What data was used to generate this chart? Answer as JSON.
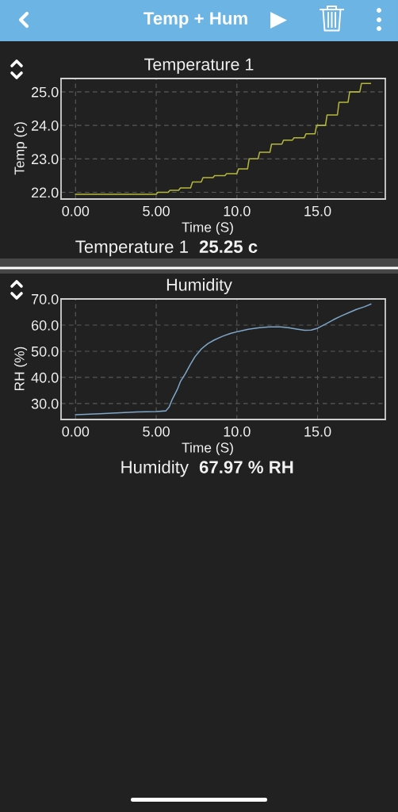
{
  "chart_data": [
    {
      "type": "other",
      "title": "Temp + Hum"
    },
    {
      "type": "line",
      "title": "Temperature 1",
      "xlabel": "Time (S)",
      "ylabel": "Temp (c)",
      "color": "#b5b83a",
      "x": [
        0,
        5.0,
        5.1,
        5.74,
        5.85,
        6.39,
        6.5,
        7.13,
        7.25,
        7.79,
        7.9,
        8.52,
        8.62,
        9.26,
        9.36,
        10.0,
        10.1,
        10.66,
        10.76,
        11.31,
        11.41,
        12.05,
        12.15,
        12.79,
        12.89,
        13.44,
        13.54,
        14.18,
        14.28,
        14.84,
        14.94,
        15.49,
        15.59,
        16.23,
        16.33,
        16.89,
        16.99,
        17.62,
        17.72,
        18.28
      ],
      "values": [
        21.94,
        21.94,
        22.0,
        22.0,
        22.06,
        22.06,
        22.13,
        22.13,
        22.31,
        22.31,
        22.44,
        22.44,
        22.5,
        22.5,
        22.56,
        22.56,
        22.7,
        22.7,
        23.0,
        23.0,
        23.2,
        23.2,
        23.44,
        23.44,
        23.56,
        23.56,
        23.63,
        23.63,
        23.75,
        23.75,
        24.0,
        24.0,
        24.31,
        24.31,
        24.69,
        24.69,
        25.0,
        25.0,
        25.25,
        25.25
      ],
      "xlim": [
        -0.9,
        19.2
      ],
      "ylim": [
        21.8,
        25.4
      ],
      "xticks": [
        {
          "value": 0,
          "label": "0.00"
        },
        {
          "value": 5,
          "label": "5.00"
        },
        {
          "value": 10,
          "label": "10.0"
        },
        {
          "value": 15,
          "label": "15.0"
        }
      ],
      "yticks": [
        {
          "value": 22,
          "label": "22.0"
        },
        {
          "value": 23,
          "label": "23.0"
        },
        {
          "value": 24,
          "label": "24.0"
        },
        {
          "value": 25,
          "label": "25.0"
        }
      ],
      "grid": true,
      "annotations": [
        "Temperature 1",
        "25.25 c"
      ]
    },
    {
      "type": "line",
      "title": "Humidity",
      "xlabel": "Time (S)",
      "ylabel": "RH (%)",
      "color": "#7ea7c9",
      "x": [
        0,
        1.5,
        3.8,
        5.0,
        5.6,
        5.8,
        6.0,
        6.3,
        6.5,
        6.8,
        7.1,
        7.4,
        7.8,
        8.2,
        8.6,
        9.1,
        9.6,
        10.1,
        10.7,
        11.4,
        12.0,
        12.7,
        13.2,
        13.7,
        14.2,
        14.6,
        15.0,
        15.5,
        16.0,
        16.5,
        17.0,
        17.4,
        17.9,
        18.3
      ],
      "values": [
        25.7,
        26.1,
        26.8,
        26.9,
        27.2,
        28.7,
        31.7,
        35.3,
        38.4,
        41.4,
        44.8,
        47.9,
        50.9,
        52.9,
        54.3,
        55.7,
        56.8,
        57.6,
        58.4,
        59.0,
        59.3,
        59.3,
        59.0,
        58.5,
        58.0,
        58.1,
        58.8,
        60.4,
        62.1,
        63.6,
        64.9,
        66.0,
        67.0,
        68.0
      ],
      "xlim": [
        -0.9,
        19.2
      ],
      "ylim": [
        23.9,
        70.0
      ],
      "xticks": [
        {
          "value": 0,
          "label": "0.00"
        },
        {
          "value": 5,
          "label": "5.00"
        },
        {
          "value": 10,
          "label": "10.0"
        },
        {
          "value": 15,
          "label": "15.0"
        }
      ],
      "yticks": [
        {
          "value": 30,
          "label": "30.0"
        },
        {
          "value": 40,
          "label": "40.0"
        },
        {
          "value": 50,
          "label": "50.0"
        },
        {
          "value": 60,
          "label": "60.0"
        },
        {
          "value": 70,
          "label": "70.0"
        }
      ],
      "grid": true,
      "annotations": [
        "Humidity",
        "67.97 % RH"
      ]
    }
  ]
}
